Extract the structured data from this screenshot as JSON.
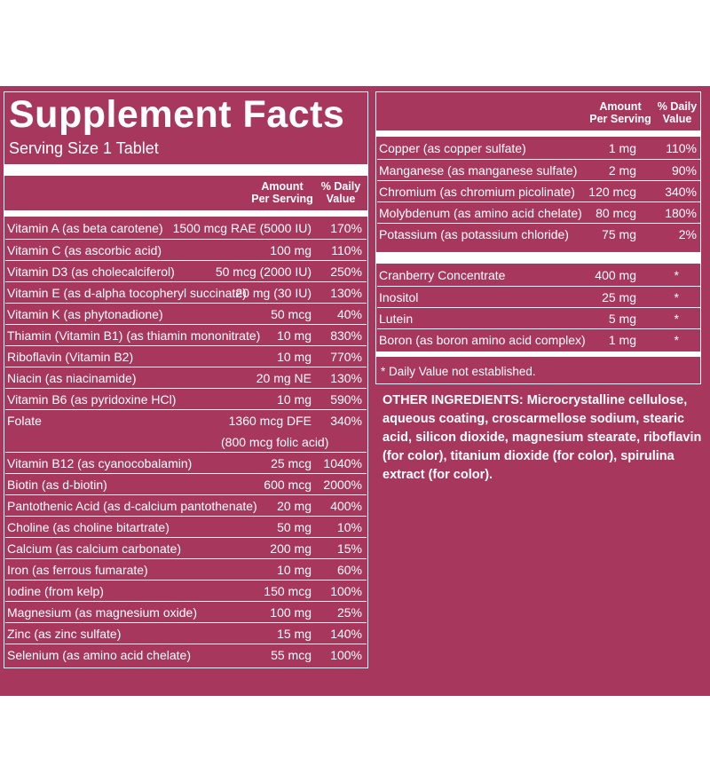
{
  "title": "Supplement Facts",
  "serving_size": "Serving Size 1 Tablet",
  "col_amount": [
    "Amount",
    "Per Serving"
  ],
  "col_dv": [
    "% Daily",
    "Value"
  ],
  "left_rows": [
    {
      "label": "Vitamin A (as beta carotene)",
      "amount": "1500 mcg RAE (5000 IU)",
      "dv": "170%"
    },
    {
      "label": "Vitamin C (as ascorbic acid)",
      "amount": "100 mg",
      "dv": "110%"
    },
    {
      "label": "Vitamin D3 (as cholecalciferol)",
      "amount": "50 mcg (2000 IU)",
      "dv": "250%"
    },
    {
      "label": "Vitamin E (as d-alpha tocopheryl succinate)",
      "amount": "20 mg (30 IU)",
      "dv": "130%"
    },
    {
      "label": "Vitamin K (as phytonadione)",
      "amount": "50 mcg",
      "dv": "40%"
    },
    {
      "label": "Thiamin (Vitamin B1) (as thiamin mononitrate)",
      "amount": "10 mg",
      "dv": "830%"
    },
    {
      "label": "Riboflavin (Vitamin B2)",
      "amount": "10 mg",
      "dv": "770%"
    },
    {
      "label": "Niacin (as niacinamide)",
      "amount": "20 mg NE",
      "dv": "130%"
    },
    {
      "label": "Vitamin B6 (as pyridoxine HCl)",
      "amount": "10 mg",
      "dv": "590%"
    },
    {
      "label": "Folate",
      "amount": "1360 mcg DFE",
      "dv": "340%",
      "sub": "(800 mcg folic acid)"
    },
    {
      "label": "Vitamin B12 (as cyanocobalamin)",
      "amount": "25 mcg",
      "dv": "1040%"
    },
    {
      "label": "Biotin (as d-biotin)",
      "amount": "600 mcg",
      "dv": "2000%"
    },
    {
      "label": "Pantothenic Acid (as d-calcium pantothenate)",
      "amount": "20 mg",
      "dv": "400%"
    },
    {
      "label": "Choline (as choline bitartrate)",
      "amount": "50 mg",
      "dv": "10%"
    },
    {
      "label": "Calcium (as calcium carbonate)",
      "amount": "200 mg",
      "dv": "15%"
    },
    {
      "label": "Iron (as ferrous fumarate)",
      "amount": "10 mg",
      "dv": "60%"
    },
    {
      "label": "Iodine (from kelp)",
      "amount": "150 mcg",
      "dv": "100%"
    },
    {
      "label": "Magnesium (as magnesium oxide)",
      "amount": "100 mg",
      "dv": "25%"
    },
    {
      "label": "Zinc (as zinc sulfate)",
      "amount": "15 mg",
      "dv": "140%"
    },
    {
      "label": "Selenium (as amino acid chelate)",
      "amount": "55 mcg",
      "dv": "100%"
    }
  ],
  "right_rows_a": [
    {
      "label": "Copper (as copper sulfate)",
      "amount": "1 mg",
      "dv": "110%"
    },
    {
      "label": "Manganese (as manganese sulfate)",
      "amount": "2 mg",
      "dv": "90%"
    },
    {
      "label": "Chromium (as chromium picolinate)",
      "amount": "120 mcg",
      "dv": "340%"
    },
    {
      "label": "Molybdenum (as amino acid chelate)",
      "amount": "80 mcg",
      "dv": "180%"
    },
    {
      "label": "Potassium (as potassium chloride)",
      "amount": "75 mg",
      "dv": "2%"
    }
  ],
  "right_rows_b": [
    {
      "label": "Cranberry Concentrate",
      "amount": "400 mg",
      "dv": "*"
    },
    {
      "label": "Inositol",
      "amount": "25 mg",
      "dv": "*"
    },
    {
      "label": "Lutein",
      "amount": "5 mg",
      "dv": "*"
    },
    {
      "label": "Boron (as boron amino acid complex)",
      "amount": "1 mg",
      "dv": "*"
    }
  ],
  "footnote": "* Daily Value not established.",
  "other_ingredients": {
    "heading": "OTHER INGREDIENTS:",
    "text": " Microcrystalline cellulose, aqueous coating, croscarmellose sodium, stearic acid, silicon dioxide, magnesium stearate, riboflavin (for color), titanium dioxide (for color), spirulina extract (for color)."
  },
  "colors": {
    "background": "#a7375d",
    "text": "#ffffff"
  }
}
